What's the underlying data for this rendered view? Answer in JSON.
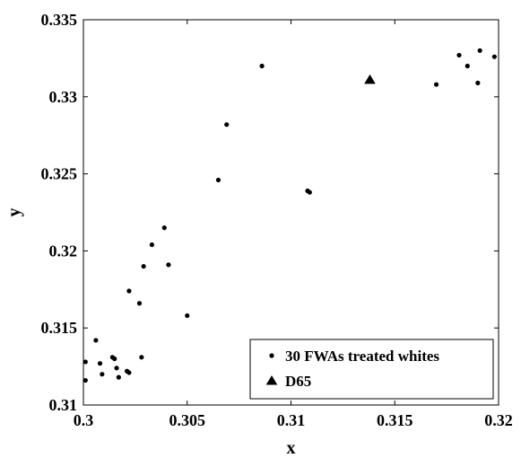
{
  "chart_data": {
    "type": "scatter",
    "title": "",
    "xlabel": "x",
    "ylabel": "y",
    "xlim": [
      0.3,
      0.32
    ],
    "ylim": [
      0.31,
      0.335
    ],
    "x_ticks": [
      0.3,
      0.305,
      0.31,
      0.315,
      0.32
    ],
    "x_tick_labels": [
      "0.3",
      "0.305",
      "0.31",
      "0.315",
      "0.32"
    ],
    "y_ticks": [
      0.31,
      0.315,
      0.32,
      0.325,
      0.33,
      0.335
    ],
    "y_tick_labels": [
      "0.31",
      "0.315",
      "0.32",
      "0.325",
      "0.33",
      "0.335"
    ],
    "grid": false,
    "legend_position": "bottom-right",
    "series": [
      {
        "name": "30 FWAs treated whites",
        "marker": "dot",
        "color": "#000000",
        "points": [
          [
            0.3001,
            0.3128
          ],
          [
            0.3001,
            0.3116
          ],
          [
            0.3006,
            0.3142
          ],
          [
            0.3008,
            0.3127
          ],
          [
            0.3009,
            0.312
          ],
          [
            0.3014,
            0.3131
          ],
          [
            0.3015,
            0.313
          ],
          [
            0.3016,
            0.3124
          ],
          [
            0.3017,
            0.3118
          ],
          [
            0.3021,
            0.3122
          ],
          [
            0.3022,
            0.3174
          ],
          [
            0.3022,
            0.3121
          ],
          [
            0.3027,
            0.3166
          ],
          [
            0.3028,
            0.3131
          ],
          [
            0.3029,
            0.319
          ],
          [
            0.3033,
            0.3204
          ],
          [
            0.3039,
            0.3215
          ],
          [
            0.3041,
            0.3191
          ],
          [
            0.305,
            0.3158
          ],
          [
            0.3065,
            0.3246
          ],
          [
            0.3069,
            0.3282
          ],
          [
            0.3086,
            0.332
          ],
          [
            0.3108,
            0.3239
          ],
          [
            0.3109,
            0.3238
          ],
          [
            0.317,
            0.3308
          ],
          [
            0.3181,
            0.3327
          ],
          [
            0.3185,
            0.332
          ],
          [
            0.319,
            0.3309
          ],
          [
            0.3191,
            0.333
          ],
          [
            0.3198,
            0.3326
          ]
        ]
      },
      {
        "name": "D65",
        "marker": "triangle",
        "color": "#000000",
        "points": [
          [
            0.3138,
            0.3311
          ]
        ]
      }
    ]
  }
}
